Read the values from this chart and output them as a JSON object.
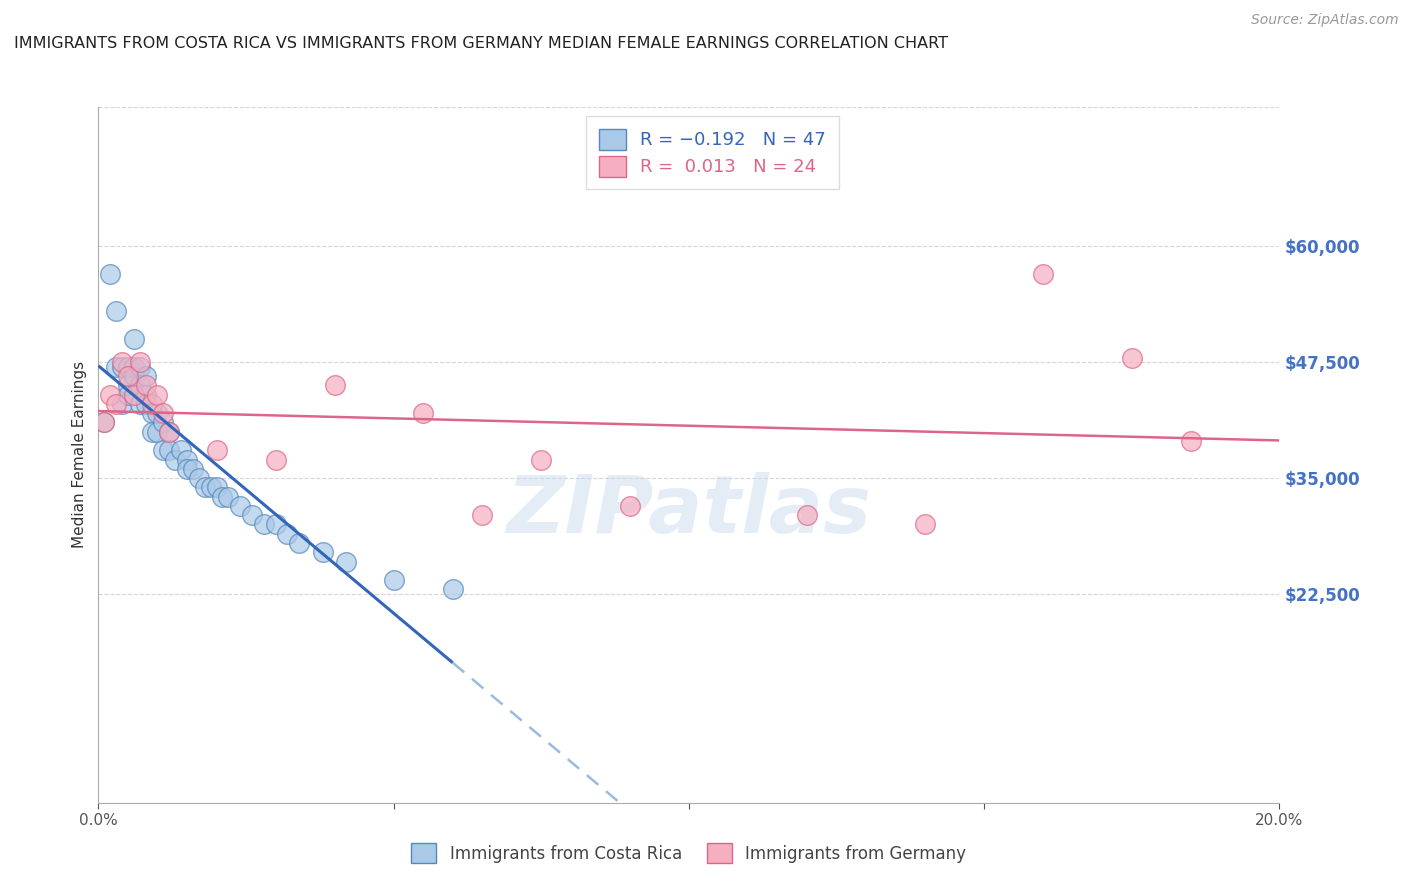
{
  "title": "IMMIGRANTS FROM COSTA RICA VS IMMIGRANTS FROM GERMANY MEDIAN FEMALE EARNINGS CORRELATION CHART",
  "source": "Source: ZipAtlas.com",
  "ylabel": "Median Female Earnings",
  "watermark": "ZIPatlas",
  "xlim": [
    0.0,
    0.2
  ],
  "ylim": [
    0,
    75000
  ],
  "yticks": [
    0,
    22500,
    35000,
    47500,
    60000
  ],
  "ytick_labels": [
    "",
    "$22,500",
    "$35,000",
    "$47,500",
    "$60,000"
  ],
  "xticks": [
    0.0,
    0.05,
    0.1,
    0.15,
    0.2
  ],
  "xtick_labels": [
    "0.0%",
    "",
    "",
    "",
    "20.0%"
  ],
  "costa_rica_color": "#aac9e8",
  "germany_color": "#f5afc0",
  "costa_rica_edge": "#5588bb",
  "germany_edge": "#dd6688",
  "trend_blue_color": "#3366bb",
  "trend_blue_dash_color": "#99bbdd",
  "trend_pink_color": "#dd6688",
  "background_color": "#ffffff",
  "grid_color": "#cccccc",
  "axis_color": "#aaaaaa",
  "title_color": "#222222",
  "ytick_color": "#4472c4",
  "xtick_color": "#555555",
  "costa_rica_x": [
    0.001,
    0.002,
    0.003,
    0.003,
    0.004,
    0.004,
    0.005,
    0.005,
    0.005,
    0.006,
    0.006,
    0.006,
    0.007,
    0.007,
    0.007,
    0.008,
    0.008,
    0.008,
    0.009,
    0.009,
    0.01,
    0.01,
    0.011,
    0.011,
    0.012,
    0.012,
    0.013,
    0.014,
    0.015,
    0.015,
    0.016,
    0.017,
    0.018,
    0.019,
    0.02,
    0.021,
    0.022,
    0.024,
    0.026,
    0.028,
    0.03,
    0.032,
    0.034,
    0.038,
    0.042,
    0.05,
    0.06
  ],
  "costa_rica_y": [
    41000,
    57000,
    53000,
    47000,
    47000,
    43000,
    47000,
    45000,
    44000,
    50000,
    47000,
    46000,
    47000,
    45000,
    43000,
    46000,
    44000,
    43000,
    42000,
    40000,
    42000,
    40000,
    41000,
    38000,
    40000,
    38000,
    37000,
    38000,
    37000,
    36000,
    36000,
    35000,
    34000,
    34000,
    34000,
    33000,
    33000,
    32000,
    31000,
    30000,
    30000,
    29000,
    28000,
    27000,
    26000,
    24000,
    23000
  ],
  "germany_x": [
    0.001,
    0.002,
    0.003,
    0.004,
    0.005,
    0.006,
    0.007,
    0.008,
    0.009,
    0.01,
    0.011,
    0.012,
    0.02,
    0.03,
    0.04,
    0.055,
    0.065,
    0.075,
    0.09,
    0.12,
    0.14,
    0.16,
    0.175,
    0.185
  ],
  "germany_y": [
    41000,
    44000,
    43000,
    47500,
    46000,
    44000,
    47500,
    45000,
    43000,
    44000,
    42000,
    40000,
    38000,
    37000,
    45000,
    42000,
    31000,
    37000,
    32000,
    31000,
    30000,
    57000,
    48000,
    39000
  ]
}
